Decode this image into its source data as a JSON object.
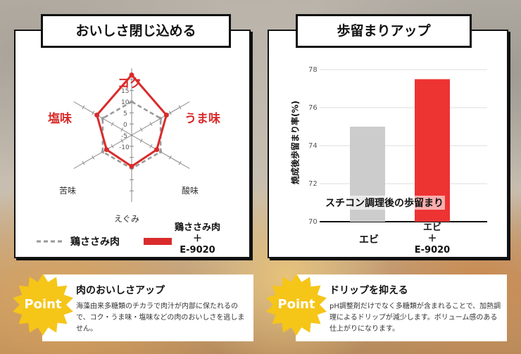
{
  "left": {
    "title": "おいしさ閉じ込める",
    "radar": {
      "axes": [
        "コク",
        "うま味",
        "酸味",
        "えぐみ",
        "苦味",
        "塩味"
      ],
      "ticks": [
        "15",
        "10",
        "5",
        "0",
        "-5",
        "-10"
      ],
      "series": [
        {
          "name": "鶏ささみ肉",
          "values": [
            0,
            0,
            0,
            0,
            0,
            0
          ],
          "color": "#999999",
          "style": "dashed"
        },
        {
          "name": "鶏ささみ肉＋E-9020",
          "values": [
            12,
            3,
            -2,
            -1,
            -2,
            3
          ],
          "color": "#d92b2b"
        }
      ]
    },
    "legend": {
      "a": "鶏ささみ肉",
      "b_line1": "鶏ささみ肉",
      "b_line2": "＋",
      "b_line3": "E-9020"
    }
  },
  "right": {
    "title": "歩留まりアップ",
    "ylabel": "焼成後歩留まり率(%)",
    "overlay_caption": "スチコン調理後の歩留まり",
    "ticks": [
      "78",
      "76",
      "74",
      "72",
      "70"
    ],
    "cat_a": "エビ",
    "cat_b_line1": "エビ",
    "cat_b_line2": "＋",
    "cat_b_line3": "E-9020"
  },
  "chart_data": [
    {
      "type": "radar",
      "title": "おいしさ閉じ込める",
      "categories": [
        "コク",
        "うま味",
        "酸味",
        "えぐみ",
        "苦味",
        "塩味"
      ],
      "range": [
        -15,
        15
      ],
      "series": [
        {
          "name": "鶏ささみ肉",
          "values": [
            0,
            0,
            0,
            0,
            0,
            0
          ]
        },
        {
          "name": "鶏ささみ肉＋E-9020",
          "values": [
            12,
            3,
            -2,
            -1,
            -2,
            3
          ]
        }
      ]
    },
    {
      "type": "bar",
      "title": "歩留まりアップ",
      "categories": [
        "エビ",
        "エビ＋E-9020"
      ],
      "values": [
        75.0,
        77.5
      ],
      "ylabel": "焼成後歩留まり率(%)",
      "ylim": [
        70,
        78
      ],
      "colors": [
        "#cccccc",
        "#ee3333"
      ],
      "grid": true
    }
  ],
  "cards": {
    "point_label": "Point",
    "left_head": "肉のおいしさアップ",
    "left_body": "海藻由来多糖類のチカラで肉汁が内部に保たれるので、コク・うま味・塩味などの肉のおいしさを逃しません。",
    "right_head": "ドリップを抑える",
    "right_body": "pH調整剤だけでなく多糖類が含まれることで、加熱調理によるドリップが減少します。ボリューム感のある仕上がりになります。"
  },
  "colors": {
    "accent": "#d92b2b",
    "burst": "#f5c518"
  }
}
